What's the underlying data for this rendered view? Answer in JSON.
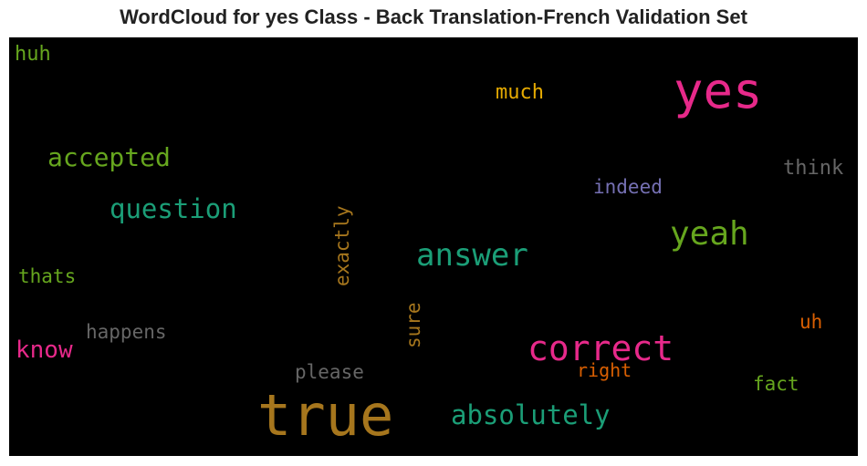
{
  "title": "WordCloud for yes Class - Back Translation-French Validation Set",
  "chart_data": {
    "type": "wordcloud",
    "background": "#000000",
    "words": [
      {
        "text": "huh",
        "color": "#66a61e"
      },
      {
        "text": "yes",
        "color": "#e7298a"
      },
      {
        "text": "much",
        "color": "#e6ab02"
      },
      {
        "text": "accepted",
        "color": "#66a61e"
      },
      {
        "text": "think",
        "color": "#666666"
      },
      {
        "text": "indeed",
        "color": "#7570b3"
      },
      {
        "text": "question",
        "color": "#1b9e77"
      },
      {
        "text": "exactly",
        "color": "#a6761d"
      },
      {
        "text": "yeah",
        "color": "#66a61e"
      },
      {
        "text": "answer",
        "color": "#1b9e77"
      },
      {
        "text": "thats",
        "color": "#66a61e"
      },
      {
        "text": "sure",
        "color": "#a6761d"
      },
      {
        "text": "happens",
        "color": "#666666"
      },
      {
        "text": "know",
        "color": "#e7298a"
      },
      {
        "text": "correct",
        "color": "#e7298a"
      },
      {
        "text": "uh",
        "color": "#d95f02"
      },
      {
        "text": "please",
        "color": "#666666"
      },
      {
        "text": "right",
        "color": "#d95f02"
      },
      {
        "text": "fact",
        "color": "#66a61e"
      },
      {
        "text": "true",
        "color": "#a6761d"
      },
      {
        "text": "absolutely",
        "color": "#1b9e77"
      }
    ]
  }
}
